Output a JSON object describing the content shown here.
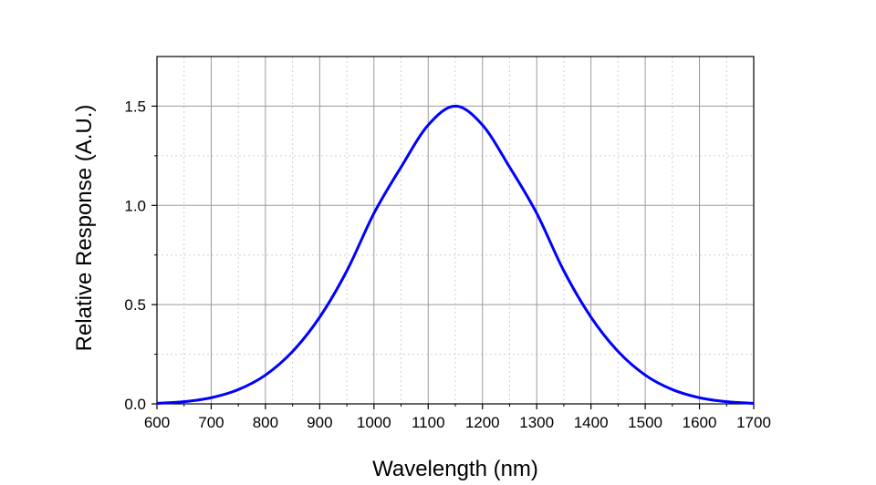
{
  "chart_data": {
    "type": "line",
    "xlabel": "Wavelength (nm)",
    "ylabel": "Relative Response (A.U.)",
    "xlim": [
      600,
      1700
    ],
    "ylim": [
      0,
      1.75
    ],
    "x_ticks": [
      "600",
      "700",
      "800",
      "900",
      "1000",
      "1100",
      "1200",
      "1300",
      "1400",
      "1500",
      "1600",
      "1700"
    ],
    "y_ticks": [
      "0.0",
      "0.5",
      "1.0",
      "1.5"
    ],
    "grid": true,
    "legend": "none",
    "series": [
      {
        "color": "#0000ff",
        "x": [
          600,
          650,
          700,
          750,
          800,
          850,
          900,
          950,
          1000,
          1050,
          1100,
          1150,
          1200,
          1250,
          1300,
          1350,
          1400,
          1450,
          1500,
          1550,
          1600,
          1650,
          1700
        ],
        "y": [
          0.003,
          0.011,
          0.031,
          0.072,
          0.145,
          0.264,
          0.437,
          0.67,
          0.96,
          1.193,
          1.405,
          1.5,
          1.405,
          1.193,
          0.96,
          0.67,
          0.437,
          0.264,
          0.145,
          0.072,
          0.031,
          0.011,
          0.003
        ]
      }
    ]
  }
}
